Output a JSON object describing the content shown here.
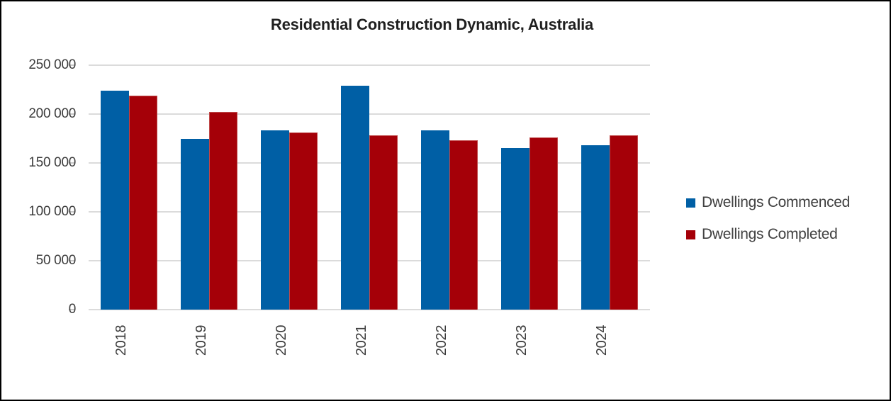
{
  "chart_data": {
    "type": "bar",
    "title": "Residential Construction Dynamic, Australia",
    "categories": [
      "2018",
      "2019",
      "2020",
      "2021",
      "2022",
      "2023",
      "2024"
    ],
    "series": [
      {
        "name": "Dwellings Commenced",
        "color": "#005FA5",
        "values": [
          224000,
          175000,
          183000,
          229000,
          183000,
          165000,
          168000
        ]
      },
      {
        "name": "Dwellings Completed",
        "color": "#A50008",
        "values": [
          219000,
          202000,
          181000,
          178000,
          173000,
          176000,
          178000
        ]
      }
    ],
    "xlabel": "",
    "ylabel": "",
    "ylim": [
      0,
      250000
    ],
    "ytick_step": 50000,
    "ytick_labels": [
      "0",
      "50 000",
      "100 000",
      "150 000",
      "200 000",
      "250 000"
    ],
    "grid": true,
    "legend_position": "right"
  },
  "colors": {
    "background": "#ffffff",
    "frame_border": "#000000",
    "gridline": "#dbdbdb",
    "axis_text": "#3c3c3c",
    "title_text": "#1f1f1f",
    "legend_text": "#404040",
    "series_blue": "#005FA5",
    "series_red": "#A50008"
  }
}
